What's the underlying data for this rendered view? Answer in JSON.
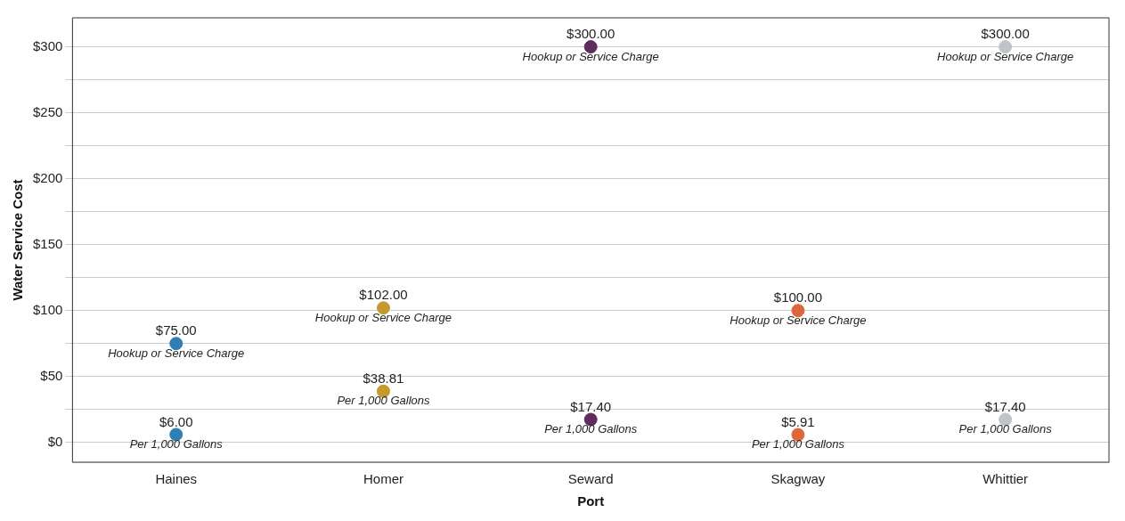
{
  "chart_data": {
    "type": "scatter",
    "xlabel": "Port",
    "ylabel": "Water Service Cost",
    "categories": [
      "Haines",
      "Homer",
      "Seward",
      "Skagway",
      "Whittier"
    ],
    "series": [
      {
        "name": "Hookup or Service Charge",
        "colors": [
          "#2e7fb5",
          "#c49a2c",
          "#5e2d5e",
          "#e0663a",
          "#c0c4c8"
        ],
        "values": [
          75,
          102,
          300,
          100,
          300
        ],
        "value_labels": [
          "$75.00",
          "$102.00",
          "$300.00",
          "$100.00",
          "$300.00"
        ]
      },
      {
        "name": "Per 1,000 Gallons",
        "colors": [
          "#2e7fb5",
          "#c49a2c",
          "#5e2d5e",
          "#e0663a",
          "#c0c4c8"
        ],
        "values": [
          6,
          38.81,
          17.4,
          5.91,
          17.4
        ],
        "value_labels": [
          "$6.00",
          "$38.81",
          "$17.40",
          "$5.91",
          "$17.40"
        ]
      }
    ],
    "ylim": [
      -15,
      322
    ],
    "yticks": [
      {
        "value": 0,
        "label": "$0"
      },
      {
        "value": 25,
        "label": null
      },
      {
        "value": 50,
        "label": "$50"
      },
      {
        "value": 75,
        "label": null
      },
      {
        "value": 100,
        "label": "$100"
      },
      {
        "value": 125,
        "label": null
      },
      {
        "value": 150,
        "label": "$150"
      },
      {
        "value": 175,
        "label": null
      },
      {
        "value": 200,
        "label": "$200"
      },
      {
        "value": 225,
        "label": null
      },
      {
        "value": 250,
        "label": "$250"
      },
      {
        "value": 275,
        "label": null
      },
      {
        "value": 300,
        "label": "$300"
      }
    ],
    "grid": "y",
    "legend": false,
    "marker": "circle"
  }
}
